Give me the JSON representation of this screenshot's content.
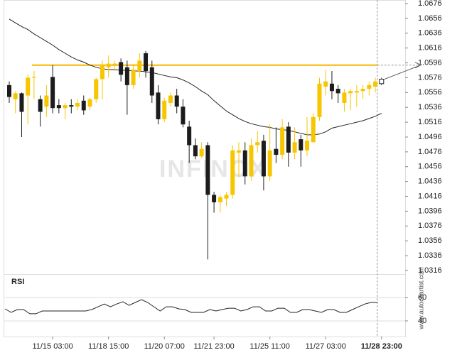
{
  "chart_data": [
    {
      "type": "candlestick",
      "categories": [
        null,
        null,
        null,
        null,
        null,
        null,
        null,
        "11/15 03:00",
        null,
        null,
        null,
        null,
        null,
        null,
        null,
        null,
        "11/18 15:00",
        null,
        null,
        null,
        null,
        null,
        null,
        null,
        null,
        "11/20 07:00",
        null,
        null,
        null,
        null,
        null,
        null,
        null,
        "11/21 23:00",
        null,
        null,
        null,
        null,
        null,
        null,
        null,
        null,
        "11/25 11:00",
        null,
        null,
        null,
        null,
        null,
        null,
        null,
        null,
        "11/27 03:00",
        null,
        null,
        null,
        null,
        null,
        null,
        null,
        null,
        "11/28 23:00"
      ],
      "open": [
        1.0566,
        1.0547,
        1.0555,
        1.0552,
        1.0576,
        1.0547,
        1.0537,
        1.0577,
        1.0539,
        1.0535,
        1.0539,
        1.0537,
        1.0545,
        1.0537,
        1.0547,
        1.0574,
        1.059,
        1.0593,
        1.0597,
        1.059,
        1.0566,
        1.0585,
        1.0609,
        1.059,
        1.0556,
        1.052,
        1.0542,
        1.0552,
        1.0537,
        1.051,
        1.0485,
        1.047,
        1.0485,
        1.0418,
        1.0408,
        1.0413,
        1.0418,
        1.0475,
        1.0478,
        1.0443,
        1.0485,
        1.0491,
        1.0443,
        1.048,
        1.0472,
        1.051,
        1.0475,
        1.0493,
        1.0478,
        1.0489,
        1.0523,
        1.0564,
        1.0568,
        1.0561,
        1.0542,
        1.0555,
        1.0556,
        1.0558,
        1.0561,
        1.0564,
        1.0568
      ],
      "high": [
        1.0571,
        1.0558,
        1.0556,
        1.058,
        1.0585,
        1.0552,
        1.0566,
        1.0593,
        1.0547,
        1.0542,
        1.0547,
        1.0547,
        1.0552,
        1.0549,
        1.0576,
        1.0599,
        1.0606,
        1.0599,
        1.0602,
        1.0599,
        1.0595,
        1.0609,
        1.0612,
        1.0599,
        1.0566,
        1.0549,
        1.0556,
        1.0561,
        1.0547,
        1.0518,
        1.0494,
        1.0489,
        1.0489,
        1.0422,
        1.0418,
        1.0422,
        1.0485,
        1.0489,
        1.0489,
        1.0494,
        1.0504,
        1.0499,
        1.0513,
        1.0509,
        1.052,
        1.0516,
        1.0509,
        1.0499,
        1.0523,
        1.0528,
        1.0576,
        1.0587,
        1.0585,
        1.0566,
        1.0561,
        1.0561,
        1.0566,
        1.0566,
        1.0571,
        1.0576,
        1.0576
      ],
      "low": [
        1.0542,
        1.0528,
        1.0496,
        1.0513,
        1.0547,
        1.051,
        1.0523,
        1.0528,
        1.0528,
        1.052,
        1.0528,
        1.0532,
        1.0526,
        1.0532,
        1.0542,
        1.0547,
        1.0576,
        1.0585,
        1.0571,
        1.0526,
        1.0561,
        1.0576,
        1.0576,
        1.0542,
        1.0513,
        1.0516,
        1.0537,
        1.0528,
        1.0509,
        1.0461,
        1.0466,
        1.0468,
        1.0331,
        1.0394,
        1.0394,
        1.0403,
        1.0413,
        1.0442,
        1.0432,
        1.0437,
        1.0475,
        1.0424,
        1.0437,
        1.0461,
        1.0466,
        1.0456,
        1.0466,
        1.0456,
        1.047,
        1.0489,
        1.0518,
        1.0552,
        1.0547,
        1.0542,
        1.053,
        1.0532,
        1.0537,
        1.0547,
        1.0552,
        1.0556,
        1.0566
      ],
      "close": [
        1.055,
        1.0555,
        1.053,
        1.0576,
        1.0577,
        1.053,
        1.0552,
        1.0535,
        1.0535,
        1.0539,
        1.0537,
        1.0542,
        1.0532,
        1.0547,
        1.0574,
        1.0593,
        1.0595,
        1.0595,
        1.058,
        1.0566,
        1.0587,
        1.0599,
        1.0585,
        1.0552,
        1.052,
        1.0545,
        1.0552,
        1.0537,
        1.0513,
        1.0485,
        1.047,
        1.048,
        1.0418,
        1.0408,
        1.0415,
        1.0418,
        1.0478,
        1.0478,
        1.0443,
        1.0485,
        1.0489,
        1.0443,
        1.0478,
        1.0472,
        1.0509,
        1.0475,
        1.0489,
        1.0478,
        1.0491,
        1.0523,
        1.0568,
        1.0571,
        1.0558,
        1.0555,
        1.0556,
        1.0558,
        1.0558,
        1.0561,
        1.0566,
        1.0571,
        1.0574
      ],
      "up_color": "#f7c600",
      "down_color": "#1c1c1c",
      "moving_average": {
        "color": "#222222",
        "values": [
          1.0655,
          1.065,
          1.0645,
          1.0641,
          1.0635,
          1.063,
          1.0625,
          1.062,
          1.0614,
          1.0609,
          1.0604,
          1.06,
          1.0597,
          1.0593,
          1.059,
          1.0588,
          1.0587,
          1.0587,
          1.0586,
          1.0586,
          1.0585,
          1.0585,
          1.0584,
          1.0583,
          1.0581,
          1.0579,
          1.0577,
          1.0576,
          1.0573,
          1.0569,
          1.0564,
          1.0558,
          1.0553,
          1.0545,
          1.0538,
          1.0531,
          1.0526,
          1.0521,
          1.0517,
          1.0514,
          1.0512,
          1.051,
          1.0509,
          1.0507,
          1.0506,
          1.0505,
          1.0503,
          1.0501,
          1.0499,
          1.0499,
          1.05,
          1.0503,
          1.0508,
          1.051,
          1.0512,
          1.0514,
          1.0516,
          1.0518,
          1.0521,
          1.0524,
          1.0528
        ]
      },
      "level": {
        "value": 1.0593,
        "color": "#f7b500"
      },
      "ylim": [
        1.0316,
        1.0676
      ],
      "yticks": [
        1.0676,
        1.0656,
        1.0636,
        1.0616,
        1.0596,
        1.0576,
        1.0556,
        1.0536,
        1.0516,
        1.0496,
        1.0476,
        1.0456,
        1.0436,
        1.0416,
        1.0396,
        1.0376,
        1.0356,
        1.0336,
        1.0316
      ],
      "watermark": "INFINOX",
      "source": "www.autochartist.com"
    },
    {
      "type": "line",
      "title": "RSI",
      "color": "#222222",
      "values": [
        50.3,
        47.3,
        49.7,
        49.7,
        46.1,
        46.1,
        48.5,
        48.5,
        48.5,
        48.5,
        48.5,
        48.5,
        48.5,
        48.5,
        49.7,
        52.1,
        54.5,
        52.1,
        54.5,
        56.4,
        53.3,
        55.8,
        58.2,
        55.8,
        52.1,
        48.5,
        52.1,
        52.1,
        50.3,
        49.7,
        47.3,
        47.3,
        47.3,
        49.7,
        48.5,
        49.7,
        50.9,
        50.9,
        48.5,
        49.7,
        52.1,
        52.1,
        48.5,
        48.5,
        50.9,
        50.9,
        47.3,
        47.3,
        49.7,
        49.7,
        48.5,
        47.3,
        49.7,
        49.7,
        47.3,
        47.3,
        49.7,
        52.1,
        54.5,
        55.8,
        55.8
      ],
      "ylim": [
        29,
        68
      ],
      "yticks": [
        60,
        40
      ],
      "grid": true
    }
  ]
}
